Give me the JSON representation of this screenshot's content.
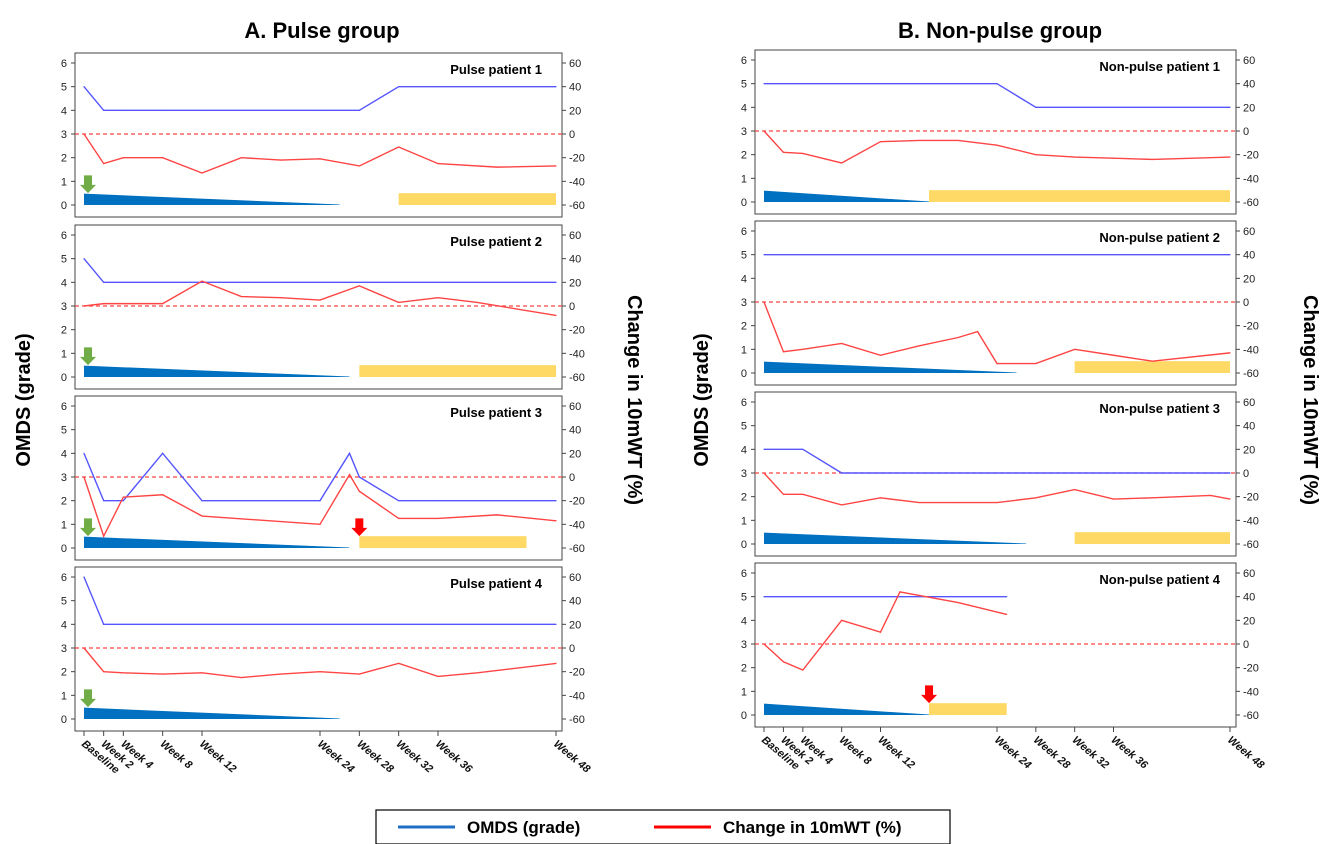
{
  "figure": {
    "group_titles": [
      "A. Pulse group",
      "B. Non-pulse group"
    ],
    "left_axis_label": "OMDS (grade)",
    "right_axis_label": "Change in 10mWT (%)",
    "legend": [
      {
        "label": "OMDS (grade)",
        "color": "#1f6fc4"
      },
      {
        "label": "Change in 10mWT (%)",
        "color": "#ff0000"
      }
    ],
    "colors": {
      "omds_line": "#5555ff",
      "walk_line": "#ff4444",
      "steroid_taper": "#0070c0",
      "yellow_bar": "#ffd966",
      "green_arrow": "#70ad47",
      "red_arrow": "#ff0000"
    }
  },
  "chart_data": [
    {
      "type": "line",
      "group": "A. Pulse group",
      "title": "Pulse patient 1",
      "x_week_labels": [
        "Baseline",
        "Week 2",
        "Week 4",
        "Week 8",
        "Week 12",
        "Week 24",
        "Week 28",
        "Week 32",
        "Week 36",
        "Week 48"
      ],
      "left_yticks": [
        0,
        1,
        2,
        3,
        4,
        5,
        6
      ],
      "right_yticks": [
        -60,
        -40,
        -20,
        0,
        20,
        40,
        60
      ],
      "series": [
        {
          "name": "OMDS (grade)",
          "axis": "left",
          "x": [
            0,
            2,
            4,
            8,
            12,
            24,
            28,
            32,
            36,
            48
          ],
          "y": [
            5,
            4,
            4,
            4,
            4,
            4,
            4,
            5,
            5,
            5
          ]
        },
        {
          "name": "Change in 10mWT (%)",
          "axis": "right",
          "x": [
            0,
            2,
            4,
            8,
            12,
            16,
            20,
            24,
            28,
            32,
            36,
            42,
            48
          ],
          "y": [
            0,
            -25,
            -20,
            -20,
            -33,
            -20,
            -22,
            -21,
            -27,
            -11,
            -25,
            -28,
            -27
          ]
        }
      ],
      "steroid_taper": {
        "start_week": 0,
        "end_week": 26
      },
      "yellow_bar": {
        "start_week": 32,
        "end_week": 48
      },
      "green_arrow_week": 0,
      "red_arrow_week": null
    },
    {
      "type": "line",
      "group": "A. Pulse group",
      "title": "Pulse patient 2",
      "x_week_labels": [
        "Baseline",
        "Week 2",
        "Week 4",
        "Week 8",
        "Week 12",
        "Week 24",
        "Week 28",
        "Week 32",
        "Week 36",
        "Week 48"
      ],
      "left_yticks": [
        0,
        1,
        2,
        3,
        4,
        5,
        6
      ],
      "right_yticks": [
        -60,
        -40,
        -20,
        0,
        20,
        40,
        60
      ],
      "series": [
        {
          "name": "OMDS (grade)",
          "axis": "left",
          "x": [
            0,
            2,
            48
          ],
          "y": [
            5,
            4,
            4
          ]
        },
        {
          "name": "Change in 10mWT (%)",
          "axis": "right",
          "x": [
            0,
            2,
            4,
            8,
            12,
            16,
            20,
            24,
            28,
            32,
            36,
            40,
            48
          ],
          "y": [
            0,
            2,
            2,
            2,
            21,
            8,
            7,
            5,
            17,
            3,
            7,
            3,
            -8
          ]
        }
      ],
      "steroid_taper": {
        "start_week": 0,
        "end_week": 27
      },
      "yellow_bar": {
        "start_week": 28,
        "end_week": 48
      },
      "green_arrow_week": 0,
      "red_arrow_week": null
    },
    {
      "type": "line",
      "group": "A. Pulse group",
      "title": "Pulse patient 3",
      "x_week_labels": [
        "Baseline",
        "Week 2",
        "Week 4",
        "Week 8",
        "Week 12",
        "Week 24",
        "Week 28",
        "Week 32",
        "Week 36",
        "Week 48"
      ],
      "left_yticks": [
        0,
        1,
        2,
        3,
        4,
        5,
        6
      ],
      "right_yticks": [
        -60,
        -40,
        -20,
        0,
        20,
        40,
        60
      ],
      "series": [
        {
          "name": "OMDS (grade)",
          "axis": "left",
          "x": [
            0,
            2,
            4,
            8,
            12,
            24,
            27,
            28,
            32,
            36,
            48
          ],
          "y": [
            4,
            2,
            2,
            4,
            2,
            2,
            4,
            3,
            2,
            2,
            2
          ]
        },
        {
          "name": "Change in 10mWT (%)",
          "axis": "right",
          "x": [
            0,
            2,
            4,
            8,
            12,
            24,
            27,
            28,
            32,
            36,
            42,
            48
          ],
          "y": [
            0,
            -50,
            -17,
            -15,
            -33,
            -40,
            2,
            -12,
            -35,
            -35,
            -32,
            -37
          ]
        }
      ],
      "steroid_taper": {
        "start_week": 0,
        "end_week": 27
      },
      "yellow_bar": {
        "start_week": 28,
        "end_week": 45
      },
      "green_arrow_week": 0,
      "red_arrow_week": 28
    },
    {
      "type": "line",
      "group": "A. Pulse group",
      "title": "Pulse patient 4",
      "x_week_labels": [
        "Baseline",
        "Week 2",
        "Week 4",
        "Week 8",
        "Week 12",
        "Week 24",
        "Week 28",
        "Week 32",
        "Week 36",
        "Week 48"
      ],
      "left_yticks": [
        0,
        1,
        2,
        3,
        4,
        5,
        6
      ],
      "right_yticks": [
        -60,
        -40,
        -20,
        0,
        20,
        40,
        60
      ],
      "series": [
        {
          "name": "OMDS (grade)",
          "axis": "left",
          "x": [
            0,
            2,
            48
          ],
          "y": [
            6,
            4,
            4
          ]
        },
        {
          "name": "Change in 10mWT (%)",
          "axis": "right",
          "x": [
            0,
            2,
            4,
            8,
            12,
            16,
            20,
            24,
            28,
            32,
            36,
            40,
            48
          ],
          "y": [
            0,
            -20,
            -21,
            -22,
            -21,
            -25,
            -22,
            -20,
            -22,
            -13,
            -24,
            -21,
            -13
          ]
        }
      ],
      "steroid_taper": {
        "start_week": 0,
        "end_week": 26
      },
      "yellow_bar": null,
      "green_arrow_week": 0,
      "red_arrow_week": null
    },
    {
      "type": "line",
      "group": "B. Non-pulse group",
      "title": "Non-pulse patient 1",
      "x_week_labels": [
        "Baseline",
        "Week 2",
        "Week 4",
        "Week 8",
        "Week 12",
        "Week 24",
        "Week 28",
        "Week 32",
        "Week 36",
        "Week 48"
      ],
      "left_yticks": [
        0,
        1,
        2,
        3,
        4,
        5,
        6
      ],
      "right_yticks": [
        -60,
        -40,
        -20,
        0,
        20,
        40,
        60
      ],
      "series": [
        {
          "name": "OMDS (grade)",
          "axis": "left",
          "x": [
            0,
            24,
            28,
            48
          ],
          "y": [
            5,
            5,
            4,
            4
          ]
        },
        {
          "name": "Change in 10mWT (%)",
          "axis": "right",
          "x": [
            0,
            2,
            4,
            8,
            12,
            16,
            20,
            24,
            28,
            32,
            36,
            40,
            48
          ],
          "y": [
            0,
            -18,
            -19,
            -27,
            -9,
            -8,
            -8,
            -12,
            -20,
            -22,
            -23,
            -24,
            -22
          ]
        }
      ],
      "steroid_taper": {
        "start_week": 0,
        "end_week": 17
      },
      "yellow_bar": {
        "start_week": 17,
        "end_week": 48
      },
      "green_arrow_week": null,
      "red_arrow_week": null
    },
    {
      "type": "line",
      "group": "B. Non-pulse group",
      "title": "Non-pulse patient 2",
      "x_week_labels": [
        "Baseline",
        "Week 2",
        "Week 4",
        "Week 8",
        "Week 12",
        "Week 24",
        "Week 28",
        "Week 32",
        "Week 36",
        "Week 48"
      ],
      "left_yticks": [
        0,
        1,
        2,
        3,
        4,
        5,
        6
      ],
      "right_yticks": [
        -60,
        -40,
        -20,
        0,
        20,
        40,
        60
      ],
      "series": [
        {
          "name": "OMDS (grade)",
          "axis": "left",
          "x": [
            0,
            48
          ],
          "y": [
            5,
            5
          ]
        },
        {
          "name": "Change in 10mWT (%)",
          "axis": "right",
          "x": [
            0,
            2,
            4,
            8,
            12,
            16,
            20,
            22,
            24,
            28,
            32,
            36,
            40,
            48
          ],
          "y": [
            0,
            -42,
            -40,
            -35,
            -45,
            -37,
            -30,
            -25,
            -52,
            -52,
            -40,
            -45,
            -50,
            -43
          ]
        }
      ],
      "steroid_taper": {
        "start_week": 0,
        "end_week": 26
      },
      "yellow_bar": {
        "start_week": 32,
        "end_week": 48
      },
      "green_arrow_week": null,
      "red_arrow_week": null
    },
    {
      "type": "line",
      "group": "B. Non-pulse group",
      "title": "Non-pulse patient 3",
      "x_week_labels": [
        "Baseline",
        "Week 2",
        "Week 4",
        "Week 8",
        "Week 12",
        "Week 24",
        "Week 28",
        "Week 32",
        "Week 36",
        "Week 48"
      ],
      "left_yticks": [
        0,
        1,
        2,
        3,
        4,
        5,
        6
      ],
      "right_yticks": [
        -60,
        -40,
        -20,
        0,
        20,
        40,
        60
      ],
      "series": [
        {
          "name": "OMDS (grade)",
          "axis": "left",
          "x": [
            0,
            4,
            8,
            48
          ],
          "y": [
            4,
            4,
            3,
            3
          ]
        },
        {
          "name": "Change in 10mWT (%)",
          "axis": "right",
          "x": [
            0,
            2,
            4,
            8,
            12,
            16,
            20,
            24,
            28,
            32,
            36,
            40,
            46,
            48
          ],
          "y": [
            0,
            -18,
            -18,
            -27,
            -21,
            -25,
            -25,
            -25,
            -21,
            -14,
            -22,
            -21,
            -19,
            -22
          ]
        }
      ],
      "steroid_taper": {
        "start_week": 0,
        "end_week": 27
      },
      "yellow_bar": {
        "start_week": 32,
        "end_week": 48
      },
      "green_arrow_week": null,
      "red_arrow_week": null
    },
    {
      "type": "line",
      "group": "B. Non-pulse group",
      "title": "Non-pulse patient 4",
      "x_week_labels": [
        "Baseline",
        "Week 2",
        "Week 4",
        "Week 8",
        "Week 12",
        "Week 24",
        "Week 28",
        "Week 32",
        "Week 36",
        "Week 48"
      ],
      "left_yticks": [
        0,
        1,
        2,
        3,
        4,
        5,
        6
      ],
      "right_yticks": [
        -60,
        -40,
        -20,
        0,
        20,
        40,
        60
      ],
      "series": [
        {
          "name": "OMDS (grade)",
          "axis": "left",
          "x": [
            0,
            25
          ],
          "y": [
            5,
            5
          ]
        },
        {
          "name": "Change in 10mWT (%)",
          "axis": "right",
          "x": [
            0,
            2,
            4,
            8,
            12,
            14,
            20,
            25
          ],
          "y": [
            0,
            -15,
            -22,
            20,
            10,
            44,
            35,
            25
          ]
        }
      ],
      "steroid_taper": {
        "start_week": 0,
        "end_week": 17
      },
      "yellow_bar": {
        "start_week": 17,
        "end_week": 25
      },
      "green_arrow_week": null,
      "red_arrow_week": 17
    }
  ]
}
